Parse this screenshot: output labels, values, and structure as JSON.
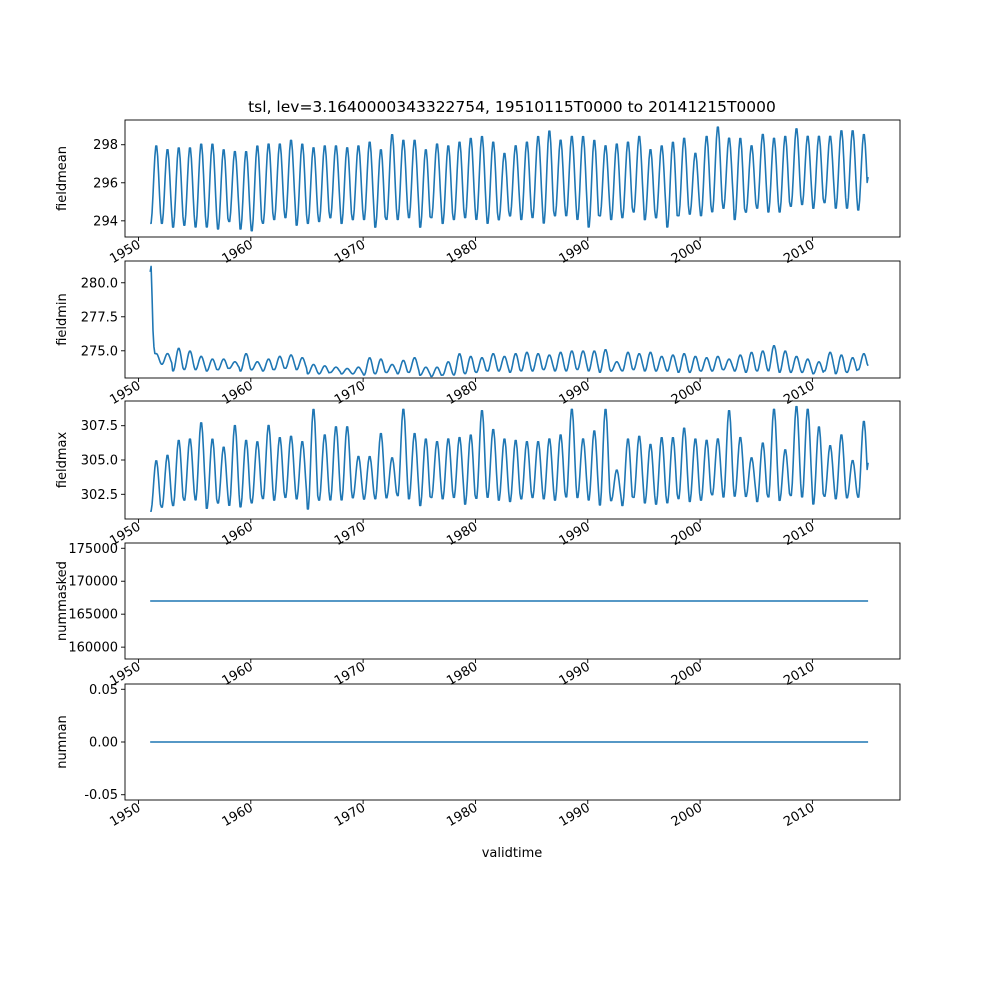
{
  "chart_data": {
    "type": "line",
    "title": "tsl, lev=3.1640000343322754, 19510115T0000 to 20141215T0000",
    "xlabel": "validtime",
    "x_range": [
      1948.8,
      2017.8
    ],
    "x_ticks": [
      "1950",
      "1960",
      "1970",
      "1980",
      "1990",
      "2000",
      "2010"
    ],
    "series_color": "#1f77b4",
    "grid": false,
    "panels": [
      {
        "ylabel": "fieldmean",
        "ylim": [
          293.15,
          299.3
        ],
        "y_ticks": [
          "294",
          "296",
          "298"
        ],
        "y_tick_values": [
          294,
          296,
          298
        ],
        "annual_min": [
          293.8,
          293.8,
          293.6,
          293.7,
          293.6,
          293.6,
          293.5,
          293.9,
          293.5,
          293.4,
          293.8,
          294.0,
          294.1,
          293.7,
          293.8,
          293.9,
          294.1,
          293.8,
          294.0,
          294.0,
          293.6,
          294.0,
          294.0,
          294.1,
          293.6,
          294.1,
          293.8,
          294.0,
          294.1,
          294.0,
          293.8,
          294.0,
          294.2,
          294.0,
          294.1,
          293.8,
          294.2,
          294.2,
          294.0,
          293.6,
          294.2,
          294.0,
          294.1,
          294.4,
          294.0,
          294.1,
          293.6,
          294.2,
          294.3,
          294.2,
          294.4,
          294.6,
          294.0,
          294.4,
          294.6,
          294.4,
          294.4,
          294.7,
          294.8,
          294.6,
          294.9,
          294.6,
          294.6,
          294.5
        ],
        "annual_max": [
          298.0,
          297.8,
          297.9,
          297.9,
          298.1,
          298.1,
          297.8,
          297.7,
          297.7,
          298.0,
          298.1,
          298.1,
          298.3,
          298.1,
          297.9,
          298.0,
          298.0,
          297.9,
          298.0,
          298.2,
          297.8,
          298.6,
          298.3,
          298.3,
          297.8,
          298.1,
          298.0,
          298.2,
          298.4,
          298.5,
          298.2,
          297.6,
          298.0,
          298.2,
          298.5,
          298.8,
          298.3,
          298.5,
          298.5,
          298.3,
          298.0,
          298.1,
          298.2,
          298.5,
          297.8,
          298.0,
          298.2,
          298.4,
          297.6,
          298.5,
          299.0,
          298.4,
          298.4,
          298.0,
          298.6,
          298.4,
          298.5,
          298.9,
          298.5,
          298.5,
          298.5,
          298.8,
          298.8,
          298.6
        ],
        "end_value": 296.3
      },
      {
        "ylabel": "fieldmin",
        "ylim": [
          273.0,
          281.6
        ],
        "y_ticks": [
          "280.0",
          "277.5",
          "275.0"
        ],
        "y_tick_values": [
          280.0,
          277.5,
          275.0
        ],
        "start_values": [
          280.8,
          281.2,
          279.0,
          276.5,
          275.3,
          274.8
        ],
        "annual_min": [
          274.0,
          274.0,
          273.5,
          273.6,
          273.6,
          273.5,
          273.6,
          273.7,
          273.5,
          273.6,
          273.5,
          273.6,
          273.7,
          273.6,
          273.3,
          273.3,
          273.4,
          273.3,
          273.3,
          273.2,
          273.3,
          273.4,
          273.3,
          273.4,
          273.2,
          273.1,
          273.2,
          273.2,
          273.3,
          273.4,
          273.5,
          273.5,
          273.4,
          273.5,
          273.5,
          273.6,
          273.5,
          273.5,
          273.6,
          273.5,
          273.4,
          273.5,
          273.5,
          273.6,
          273.5,
          273.5,
          273.5,
          273.4,
          273.4,
          273.5,
          273.5,
          273.6,
          273.5,
          273.4,
          273.5,
          273.5,
          273.4,
          273.4,
          273.4,
          273.3,
          273.5,
          273.3,
          273.4,
          273.6
        ],
        "annual_max": [
          274.8,
          274.8,
          275.2,
          275.0,
          274.6,
          274.4,
          274.4,
          274.2,
          274.8,
          274.2,
          274.4,
          274.6,
          274.7,
          274.5,
          274.0,
          273.9,
          273.8,
          273.7,
          273.8,
          274.5,
          274.4,
          274.0,
          274.3,
          274.5,
          273.8,
          273.8,
          274.2,
          274.8,
          274.6,
          274.5,
          274.8,
          274.6,
          274.8,
          274.9,
          274.8,
          274.7,
          274.9,
          275.0,
          275.0,
          275.0,
          275.1,
          274.2,
          274.9,
          274.8,
          274.9,
          274.6,
          274.7,
          274.8,
          274.6,
          274.5,
          274.6,
          274.4,
          274.7,
          274.9,
          275.0,
          275.4,
          275.0,
          274.6,
          274.4,
          274.2,
          274.9,
          274.7,
          274.5,
          274.8
        ],
        "end_value": 273.9
      },
      {
        "ylabel": "fieldmax",
        "ylim": [
          300.7,
          309.3
        ],
        "y_ticks": [
          "307.5",
          "305.0",
          "302.5"
        ],
        "y_tick_values": [
          307.5,
          305.0,
          302.5
        ],
        "annual_min": [
          301.2,
          301.5,
          301.6,
          302.0,
          302.0,
          301.4,
          301.8,
          301.6,
          301.5,
          301.8,
          302.1,
          302.0,
          302.2,
          302.1,
          301.3,
          302.0,
          302.0,
          302.0,
          302.2,
          302.1,
          302.1,
          302.2,
          302.3,
          302.1,
          301.6,
          302.2,
          302.1,
          302.2,
          301.7,
          302.1,
          302.2,
          302.0,
          301.9,
          302.1,
          302.2,
          302.1,
          302.0,
          302.2,
          302.2,
          302.0,
          301.6,
          302.0,
          301.6,
          302.2,
          301.8,
          301.7,
          301.8,
          302.1,
          301.9,
          302.0,
          302.4,
          302.2,
          302.3,
          302.3,
          301.9,
          302.2,
          302.0,
          302.3,
          302.2,
          301.7,
          302.3,
          302.1,
          302.2,
          302.2
        ],
        "annual_max": [
          305.0,
          305.4,
          306.5,
          306.6,
          307.8,
          306.6,
          306.0,
          307.6,
          306.5,
          306.4,
          307.6,
          306.7,
          306.8,
          306.4,
          308.8,
          306.9,
          307.5,
          307.5,
          305.3,
          305.3,
          307.0,
          305.2,
          308.8,
          307.0,
          306.6,
          306.4,
          306.6,
          306.7,
          306.9,
          308.7,
          307.3,
          306.6,
          306.5,
          306.4,
          306.4,
          306.6,
          306.9,
          308.8,
          306.6,
          307.2,
          308.8,
          304.3,
          306.6,
          306.8,
          306.2,
          306.7,
          306.7,
          307.4,
          306.6,
          306.5,
          306.6,
          308.7,
          306.7,
          305.2,
          306.3,
          308.8,
          305.8,
          309.0,
          308.8,
          307.5,
          306.1,
          306.9,
          305.0,
          307.9
        ],
        "end_value": 304.8
      },
      {
        "ylabel": "nummasked",
        "ylim": [
          158200,
          175800
        ],
        "y_ticks": [
          "175000",
          "170000",
          "165000",
          "160000"
        ],
        "y_tick_values": [
          175000,
          170000,
          165000,
          160000
        ],
        "constant_value": 167000
      },
      {
        "ylabel": "numnan",
        "ylim": [
          -0.055,
          0.055
        ],
        "y_ticks": [
          "0.05",
          "0.00",
          "-0.05"
        ],
        "y_tick_values": [
          0.05,
          0.0,
          -0.05
        ],
        "constant_value": 0.0
      }
    ]
  }
}
